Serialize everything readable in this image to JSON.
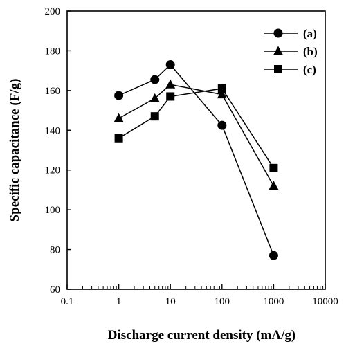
{
  "chart_data": {
    "type": "line",
    "title": "",
    "xlabel": "Discharge current density (mA/g)",
    "ylabel": "Specific capacitance (F/g)",
    "x_scale": "log",
    "xlim": [
      0.1,
      10000
    ],
    "ylim": [
      60,
      200
    ],
    "x_ticks": [
      0.1,
      1,
      10,
      100,
      1000,
      10000
    ],
    "x_tick_labels": [
      "0.1",
      "1",
      "10",
      "100",
      "1000",
      "10000"
    ],
    "y_ticks": [
      60,
      80,
      100,
      120,
      140,
      160,
      180,
      200
    ],
    "y_tick_labels": [
      "60",
      "80",
      "100",
      "120",
      "140",
      "160",
      "180",
      "200"
    ],
    "grid": false,
    "legend_position": "top-right",
    "series": [
      {
        "name": "(a)",
        "marker": "circle",
        "color": "#000000",
        "x": [
          1,
          5,
          10,
          100,
          1000
        ],
        "y": [
          157.5,
          165.5,
          173,
          142.5,
          77
        ]
      },
      {
        "name": "(b)",
        "marker": "triangle",
        "color": "#000000",
        "x": [
          1,
          5,
          10,
          100,
          1000
        ],
        "y": [
          146,
          156,
          163,
          158,
          112
        ]
      },
      {
        "name": "(c)",
        "marker": "square",
        "color": "#000000",
        "x": [
          1,
          5,
          10,
          100,
          1000
        ],
        "y": [
          136,
          147,
          157,
          161,
          121
        ]
      }
    ]
  }
}
